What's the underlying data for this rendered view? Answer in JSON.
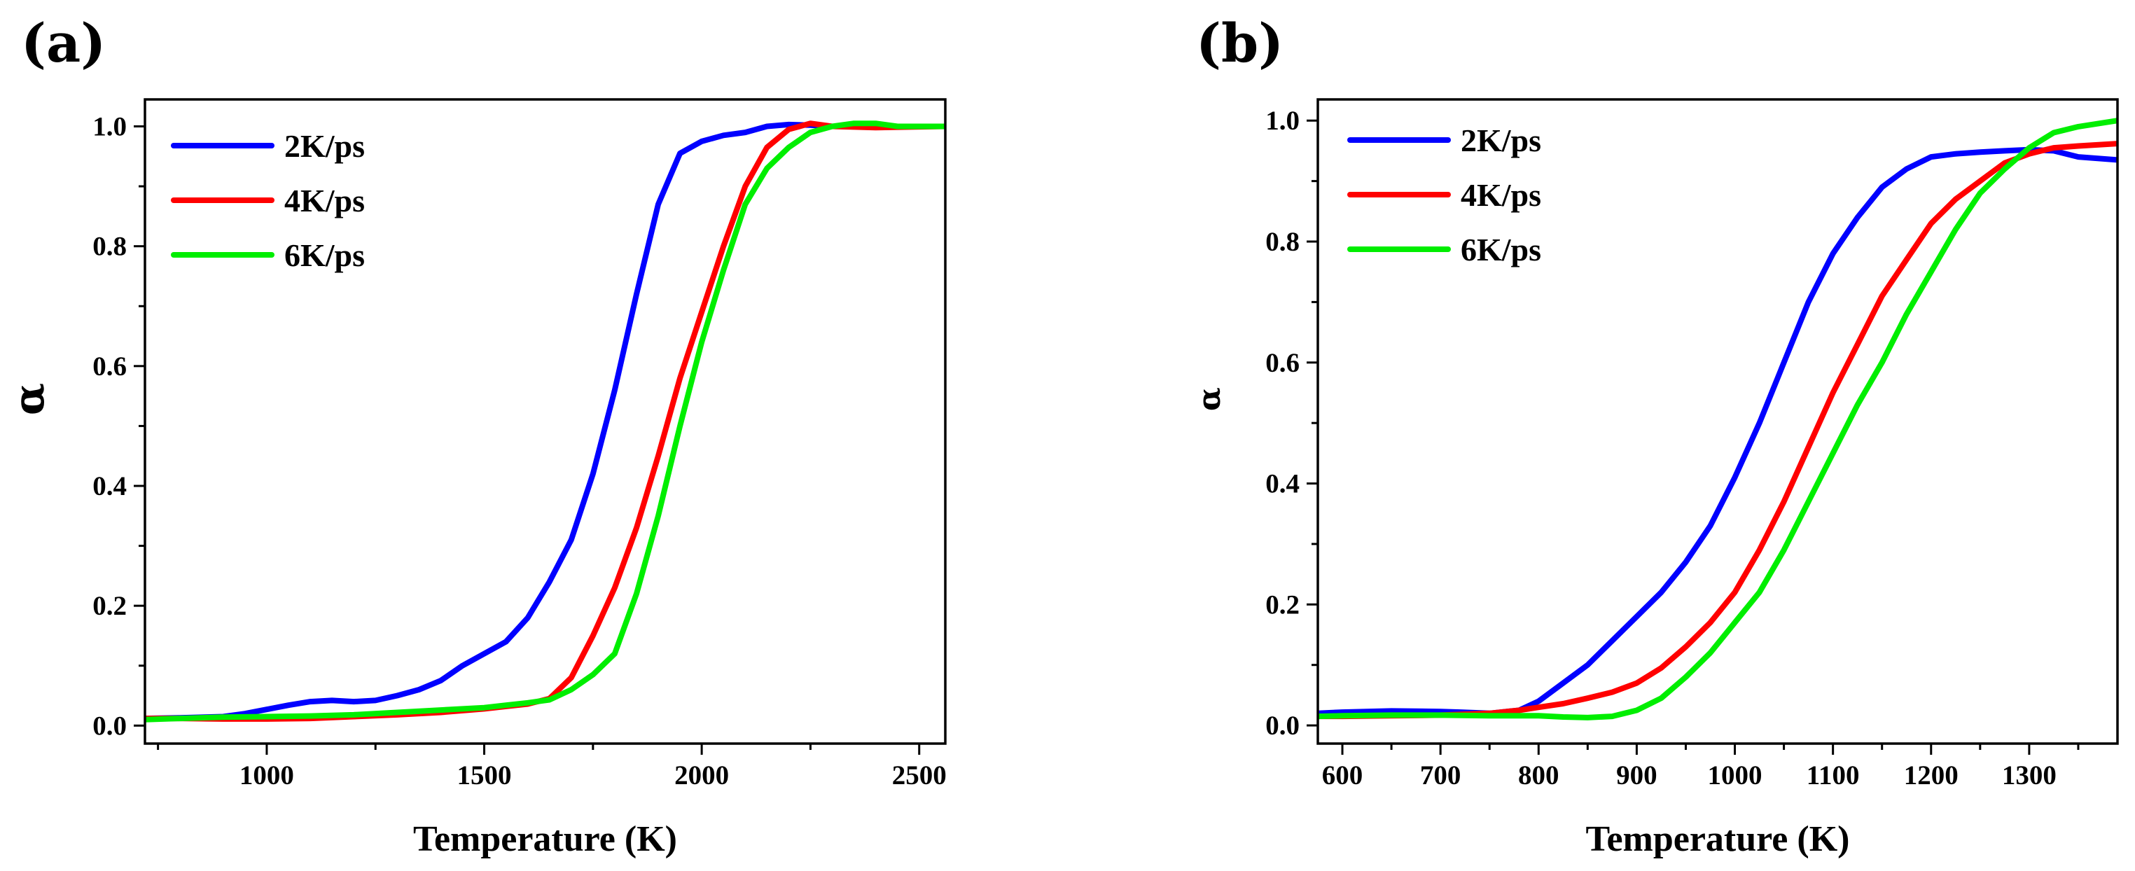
{
  "chart_data": [
    {
      "panel": "(a)",
      "type": "line",
      "xlabel": "Temperature (K)",
      "ylabel": "α",
      "xlim": [
        720,
        2560
      ],
      "ylim": [
        -0.03,
        1.045
      ],
      "xticks": [
        1000,
        1500,
        2000,
        2500
      ],
      "yticks": [
        0.0,
        0.2,
        0.4,
        0.6,
        0.8,
        1.0
      ],
      "xtick_labels": [
        "1000",
        "1500",
        "2000",
        "2500"
      ],
      "ytick_labels": [
        "0.0",
        "0.2",
        "0.4",
        "0.6",
        "0.8",
        "1.0"
      ],
      "legend_position": "top-left",
      "series": [
        {
          "name": "2K/ps",
          "color": "#0000ff",
          "points": [
            [
              720,
              0.012
            ],
            [
              800,
              0.013
            ],
            [
              900,
              0.015
            ],
            [
              950,
              0.02
            ],
            [
              1000,
              0.027
            ],
            [
              1050,
              0.034
            ],
            [
              1100,
              0.04
            ],
            [
              1150,
              0.042
            ],
            [
              1200,
              0.04
            ],
            [
              1250,
              0.042
            ],
            [
              1300,
              0.05
            ],
            [
              1350,
              0.06
            ],
            [
              1400,
              0.075
            ],
            [
              1450,
              0.1
            ],
            [
              1500,
              0.12
            ],
            [
              1550,
              0.14
            ],
            [
              1600,
              0.18
            ],
            [
              1650,
              0.24
            ],
            [
              1700,
              0.31
            ],
            [
              1750,
              0.42
            ],
            [
              1800,
              0.56
            ],
            [
              1850,
              0.72
            ],
            [
              1900,
              0.87
            ],
            [
              1950,
              0.955
            ],
            [
              2000,
              0.975
            ],
            [
              2050,
              0.985
            ],
            [
              2100,
              0.99
            ],
            [
              2150,
              1.0
            ],
            [
              2200,
              1.003
            ],
            [
              2250,
              1.002
            ],
            [
              2300,
              1.0
            ],
            [
              2400,
              1.0
            ],
            [
              2560,
              1.0
            ]
          ]
        },
        {
          "name": "4K/ps",
          "color": "#ff0000",
          "points": [
            [
              720,
              0.012
            ],
            [
              800,
              0.012
            ],
            [
              900,
              0.011
            ],
            [
              1000,
              0.011
            ],
            [
              1100,
              0.012
            ],
            [
              1200,
              0.015
            ],
            [
              1300,
              0.018
            ],
            [
              1400,
              0.022
            ],
            [
              1500,
              0.028
            ],
            [
              1550,
              0.032
            ],
            [
              1600,
              0.036
            ],
            [
              1650,
              0.045
            ],
            [
              1700,
              0.08
            ],
            [
              1750,
              0.15
            ],
            [
              1800,
              0.23
            ],
            [
              1850,
              0.33
            ],
            [
              1900,
              0.45
            ],
            [
              1950,
              0.58
            ],
            [
              2000,
              0.69
            ],
            [
              2050,
              0.8
            ],
            [
              2100,
              0.9
            ],
            [
              2150,
              0.965
            ],
            [
              2200,
              0.995
            ],
            [
              2250,
              1.005
            ],
            [
              2300,
              1.0
            ],
            [
              2400,
              0.998
            ],
            [
              2560,
              1.0
            ]
          ]
        },
        {
          "name": "6K/ps",
          "color": "#00ee00",
          "points": [
            [
              720,
              0.01
            ],
            [
              800,
              0.012
            ],
            [
              900,
              0.014
            ],
            [
              1000,
              0.015
            ],
            [
              1100,
              0.016
            ],
            [
              1200,
              0.018
            ],
            [
              1300,
              0.022
            ],
            [
              1400,
              0.026
            ],
            [
              1500,
              0.03
            ],
            [
              1550,
              0.034
            ],
            [
              1600,
              0.038
            ],
            [
              1650,
              0.043
            ],
            [
              1700,
              0.06
            ],
            [
              1750,
              0.085
            ],
            [
              1800,
              0.12
            ],
            [
              1850,
              0.22
            ],
            [
              1900,
              0.35
            ],
            [
              1950,
              0.5
            ],
            [
              2000,
              0.64
            ],
            [
              2050,
              0.76
            ],
            [
              2100,
              0.87
            ],
            [
              2150,
              0.93
            ],
            [
              2200,
              0.965
            ],
            [
              2250,
              0.99
            ],
            [
              2300,
              1.0
            ],
            [
              2350,
              1.005
            ],
            [
              2400,
              1.005
            ],
            [
              2450,
              1.0
            ],
            [
              2560,
              1.0
            ]
          ]
        }
      ]
    },
    {
      "panel": "(b)",
      "type": "line",
      "xlabel": "Temperature (K)",
      "ylabel": "α",
      "xlim": [
        575,
        1390
      ],
      "ylim": [
        -0.03,
        1.035
      ],
      "xticks": [
        600,
        700,
        800,
        900,
        1000,
        1100,
        1200,
        1300
      ],
      "yticks": [
        0.0,
        0.2,
        0.4,
        0.6,
        0.8,
        1.0
      ],
      "xtick_labels": [
        "600",
        "700",
        "800",
        "900",
        "1000",
        "1100",
        "1200",
        "1300"
      ],
      "ytick_labels": [
        "0.0",
        "0.2",
        "0.4",
        "0.6",
        "0.8",
        "1.0"
      ],
      "legend_position": "top-left",
      "series": [
        {
          "name": "2K/ps",
          "color": "#0000ff",
          "points": [
            [
              575,
              0.02
            ],
            [
              600,
              0.022
            ],
            [
              650,
              0.024
            ],
            [
              700,
              0.023
            ],
            [
              720,
              0.022
            ],
            [
              750,
              0.02
            ],
            [
              780,
              0.025
            ],
            [
              800,
              0.04
            ],
            [
              825,
              0.07
            ],
            [
              850,
              0.1
            ],
            [
              875,
              0.14
            ],
            [
              900,
              0.18
            ],
            [
              925,
              0.22
            ],
            [
              950,
              0.27
            ],
            [
              975,
              0.33
            ],
            [
              1000,
              0.41
            ],
            [
              1025,
              0.5
            ],
            [
              1050,
              0.6
            ],
            [
              1075,
              0.7
            ],
            [
              1100,
              0.78
            ],
            [
              1125,
              0.84
            ],
            [
              1150,
              0.89
            ],
            [
              1175,
              0.92
            ],
            [
              1200,
              0.94
            ],
            [
              1225,
              0.945
            ],
            [
              1250,
              0.948
            ],
            [
              1275,
              0.95
            ],
            [
              1300,
              0.952
            ],
            [
              1325,
              0.95
            ],
            [
              1350,
              0.94
            ],
            [
              1390,
              0.935
            ]
          ]
        },
        {
          "name": "4K/ps",
          "color": "#ff0000",
          "points": [
            [
              575,
              0.015
            ],
            [
              600,
              0.015
            ],
            [
              650,
              0.016
            ],
            [
              700,
              0.017
            ],
            [
              750,
              0.02
            ],
            [
              780,
              0.025
            ],
            [
              800,
              0.03
            ],
            [
              825,
              0.036
            ],
            [
              850,
              0.045
            ],
            [
              875,
              0.055
            ],
            [
              900,
              0.07
            ],
            [
              925,
              0.095
            ],
            [
              950,
              0.13
            ],
            [
              975,
              0.17
            ],
            [
              1000,
              0.22
            ],
            [
              1025,
              0.29
            ],
            [
              1050,
              0.37
            ],
            [
              1075,
              0.46
            ],
            [
              1100,
              0.55
            ],
            [
              1125,
              0.63
            ],
            [
              1150,
              0.71
            ],
            [
              1175,
              0.77
            ],
            [
              1200,
              0.83
            ],
            [
              1225,
              0.87
            ],
            [
              1250,
              0.9
            ],
            [
              1275,
              0.93
            ],
            [
              1300,
              0.945
            ],
            [
              1325,
              0.955
            ],
            [
              1350,
              0.958
            ],
            [
              1390,
              0.962
            ]
          ]
        },
        {
          "name": "6K/ps",
          "color": "#00ee00",
          "points": [
            [
              575,
              0.015
            ],
            [
              600,
              0.016
            ],
            [
              650,
              0.017
            ],
            [
              700,
              0.017
            ],
            [
              750,
              0.016
            ],
            [
              800,
              0.016
            ],
            [
              825,
              0.014
            ],
            [
              850,
              0.013
            ],
            [
              875,
              0.015
            ],
            [
              900,
              0.025
            ],
            [
              925,
              0.045
            ],
            [
              950,
              0.08
            ],
            [
              975,
              0.12
            ],
            [
              1000,
              0.17
            ],
            [
              1025,
              0.22
            ],
            [
              1050,
              0.29
            ],
            [
              1075,
              0.37
            ],
            [
              1100,
              0.45
            ],
            [
              1125,
              0.53
            ],
            [
              1150,
              0.6
            ],
            [
              1175,
              0.68
            ],
            [
              1200,
              0.75
            ],
            [
              1225,
              0.82
            ],
            [
              1250,
              0.88
            ],
            [
              1275,
              0.92
            ],
            [
              1300,
              0.955
            ],
            [
              1325,
              0.98
            ],
            [
              1350,
              0.99
            ],
            [
              1390,
              1.0
            ]
          ]
        }
      ]
    }
  ]
}
